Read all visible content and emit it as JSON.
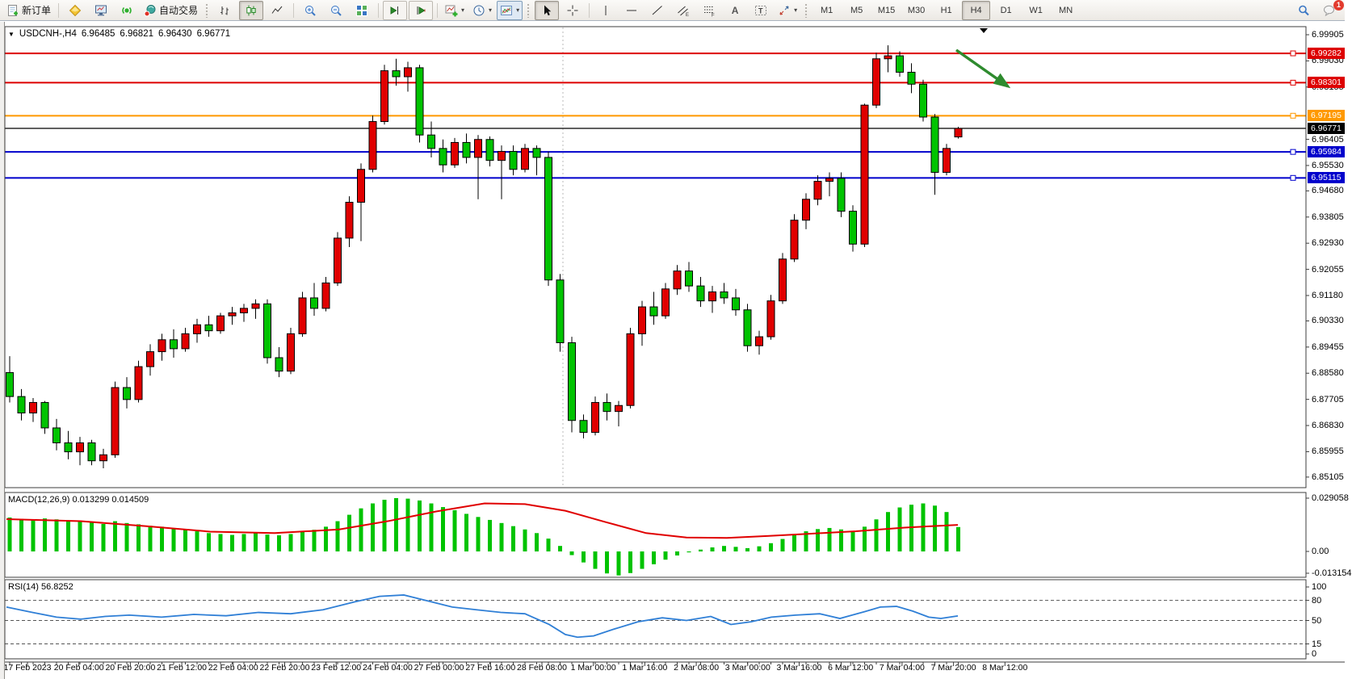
{
  "toolbar": {
    "new_order": "新订单",
    "auto_trading": "自动交易",
    "timeframes": [
      "M1",
      "M5",
      "M15",
      "M30",
      "H1",
      "H4",
      "D1",
      "W1",
      "MN"
    ],
    "active_timeframe": "H4",
    "notification_count": "1",
    "glyphs": {
      "dropdown": "▾",
      "title_arrow": "▼",
      "letter_a": "A",
      "letter_t": "T",
      "channel_tag": "E",
      "fibo_tag": "F"
    }
  },
  "chart": {
    "title": {
      "symbol": "USDCNH-,H4",
      "open": "6.96485",
      "high": "6.96821",
      "low": "6.96430",
      "close": "6.96771"
    },
    "colors": {
      "up": "#e00000",
      "down": "#00c300",
      "outline": "#000000",
      "hline_red": "#dd0000",
      "hline_orange": "#ff9900",
      "hline_blue": "#0000cc",
      "price_line": "#000000",
      "annotation_arrow": "#2e8b2e",
      "macd_hist": "#00c300",
      "macd_signal": "#e00000",
      "rsi_line": "#2f7fd6"
    },
    "price_axis_ticks": [
      "6.99905",
      "6.99030",
      "6.98155",
      "6.96405",
      "6.95530",
      "6.94680",
      "6.93805",
      "6.92930",
      "6.92055",
      "6.91180",
      "6.90330",
      "6.89455",
      "6.88580",
      "6.87705",
      "6.86830",
      "6.85955",
      "6.85105"
    ],
    "hlines": [
      {
        "price": 6.99282,
        "label": "6.99282",
        "color_key": "hline_red"
      },
      {
        "price": 6.98301,
        "label": "6.98301",
        "color_key": "hline_red"
      },
      {
        "price": 6.97195,
        "label": "6.97195",
        "color_key": "hline_orange"
      },
      {
        "price": 6.95984,
        "label": "6.95984",
        "color_key": "hline_blue"
      },
      {
        "price": 6.95115,
        "label": "6.95115",
        "color_key": "hline_blue"
      }
    ],
    "current_price": {
      "price": 6.96771,
      "label": "6.96771"
    },
    "time_labels": [
      "17 Feb 2023",
      "20 Feb 04:00",
      "20 Feb 20:00",
      "21 Feb 12:00",
      "22 Feb 04:00",
      "22 Feb 20:00",
      "23 Feb 12:00",
      "24 Feb 04:00",
      "27 Feb 00:00",
      "27 Feb 16:00",
      "28 Feb 08:00",
      "1 Mar 00:00",
      "1 Mar 16:00",
      "2 Mar 08:00",
      "3 Mar 00:00",
      "3 Mar 16:00",
      "6 Mar 12:00",
      "7 Mar 04:00",
      "7 Mar 20:00",
      "8 Mar 12:00"
    ],
    "candles": [
      [
        6.886,
        6.8915,
        6.876,
        6.878
      ],
      [
        6.878,
        6.8805,
        6.87,
        6.8725
      ],
      [
        6.8725,
        6.8775,
        6.8695,
        6.876
      ],
      [
        6.876,
        6.8765,
        6.8655,
        6.8675
      ],
      [
        6.8675,
        6.8705,
        6.86,
        6.8625
      ],
      [
        6.8625,
        6.8665,
        6.857,
        6.8595
      ],
      [
        6.8595,
        6.8645,
        6.855,
        6.8625
      ],
      [
        6.8625,
        6.8635,
        6.855,
        6.8565
      ],
      [
        6.8565,
        6.8605,
        6.854,
        6.8585
      ],
      [
        6.8585,
        6.883,
        6.8575,
        6.881
      ],
      [
        6.881,
        6.8845,
        6.874,
        6.877
      ],
      [
        6.877,
        6.89,
        6.876,
        6.888
      ],
      [
        6.888,
        6.8955,
        6.885,
        6.893
      ],
      [
        6.893,
        6.899,
        6.89,
        6.897
      ],
      [
        6.897,
        6.9005,
        6.891,
        6.894
      ],
      [
        6.894,
        6.901,
        6.893,
        6.899
      ],
      [
        6.899,
        6.904,
        6.896,
        6.902
      ],
      [
        6.902,
        6.905,
        6.898,
        6.9
      ],
      [
        6.9,
        6.906,
        6.899,
        6.905
      ],
      [
        6.905,
        6.908,
        6.902,
        6.906
      ],
      [
        6.906,
        6.909,
        6.903,
        6.9075
      ],
      [
        6.9075,
        6.9105,
        6.904,
        6.909
      ],
      [
        6.909,
        6.9105,
        6.889,
        6.891
      ],
      [
        6.891,
        6.8945,
        6.8845,
        6.8865
      ],
      [
        6.8865,
        6.901,
        6.8855,
        6.899
      ],
      [
        6.899,
        6.913,
        6.898,
        6.911
      ],
      [
        6.911,
        6.916,
        6.905,
        6.9075
      ],
      [
        6.9075,
        6.918,
        6.9065,
        6.916
      ],
      [
        6.916,
        6.933,
        6.915,
        6.931
      ],
      [
        6.931,
        6.945,
        6.928,
        6.943
      ],
      [
        6.943,
        6.956,
        6.93,
        6.954
      ],
      [
        6.954,
        6.972,
        6.953,
        6.97
      ],
      [
        6.97,
        6.989,
        6.969,
        6.987
      ],
      [
        6.987,
        6.991,
        6.982,
        6.985
      ],
      [
        6.985,
        6.99,
        6.98,
        6.988
      ],
      [
        6.988,
        6.989,
        6.963,
        6.9655
      ],
      [
        6.9655,
        6.97,
        6.958,
        6.961
      ],
      [
        6.961,
        6.964,
        6.953,
        6.9555
      ],
      [
        6.9555,
        6.9645,
        6.9545,
        6.963
      ],
      [
        6.963,
        6.966,
        6.956,
        6.958
      ],
      [
        6.958,
        6.9655,
        6.944,
        6.964
      ],
      [
        6.964,
        6.965,
        6.955,
        6.957
      ],
      [
        6.957,
        6.962,
        6.944,
        6.96
      ],
      [
        6.96,
        6.962,
        6.952,
        6.954
      ],
      [
        6.954,
        6.9625,
        6.953,
        6.961
      ],
      [
        6.961,
        6.962,
        6.952,
        6.958
      ],
      [
        6.958,
        6.96,
        6.915,
        6.917
      ],
      [
        6.917,
        6.919,
        6.893,
        6.896
      ],
      [
        6.896,
        6.898,
        6.866,
        6.87
      ],
      [
        6.87,
        6.872,
        6.864,
        6.866
      ],
      [
        6.866,
        6.878,
        6.865,
        6.876
      ],
      [
        6.876,
        6.879,
        6.87,
        6.873
      ],
      [
        6.873,
        6.8765,
        6.868,
        6.875
      ],
      [
        6.875,
        6.901,
        6.874,
        6.899
      ],
      [
        6.899,
        6.91,
        6.895,
        6.908
      ],
      [
        6.908,
        6.913,
        6.902,
        6.905
      ],
      [
        6.905,
        6.916,
        6.904,
        6.914
      ],
      [
        6.914,
        6.922,
        6.912,
        6.92
      ],
      [
        6.92,
        6.923,
        6.913,
        6.915
      ],
      [
        6.915,
        6.918,
        6.908,
        6.91
      ],
      [
        6.91,
        6.915,
        6.906,
        6.913
      ],
      [
        6.913,
        6.916,
        6.909,
        6.911
      ],
      [
        6.911,
        6.914,
        6.905,
        6.907
      ],
      [
        6.907,
        6.909,
        6.893,
        6.895
      ],
      [
        6.895,
        6.9,
        6.892,
        6.898
      ],
      [
        6.898,
        6.912,
        6.897,
        6.91
      ],
      [
        6.91,
        6.926,
        6.909,
        6.924
      ],
      [
        6.924,
        6.939,
        6.923,
        6.937
      ],
      [
        6.937,
        6.946,
        6.934,
        6.944
      ],
      [
        6.944,
        6.952,
        6.942,
        6.95
      ],
      [
        6.95,
        6.953,
        6.945,
        6.951
      ],
      [
        6.951,
        6.953,
        6.938,
        6.94
      ],
      [
        6.94,
        6.942,
        6.9265,
        6.929
      ],
      [
        6.929,
        6.976,
        6.928,
        6.9755
      ],
      [
        6.9755,
        6.993,
        6.9745,
        6.991
      ],
      [
        6.991,
        6.9955,
        6.9865,
        6.992
      ],
      [
        6.992,
        6.9935,
        6.985,
        6.9865
      ],
      [
        6.9865,
        6.9895,
        6.9795,
        6.9825
      ],
      [
        6.9825,
        6.984,
        6.97,
        6.9715
      ],
      [
        6.9715,
        6.9725,
        6.9455,
        6.953
      ],
      [
        6.953,
        6.9625,
        6.952,
        6.961
      ],
      [
        6.96485,
        6.96821,
        6.9643,
        6.96771
      ]
    ]
  },
  "macd": {
    "label": "MACD(12,26,9) 0.013299 0.014509",
    "scale_top": "0.029058",
    "scale_zero": "0.00",
    "scale_bottom": "-0.013154",
    "histogram": [
      0.0185,
      0.0178,
      0.0172,
      0.018,
      0.0175,
      0.0168,
      0.0162,
      0.0158,
      0.015,
      0.0165,
      0.0155,
      0.0148,
      0.014,
      0.0135,
      0.0125,
      0.0118,
      0.011,
      0.01,
      0.0095,
      0.009,
      0.0095,
      0.01,
      0.0092,
      0.0088,
      0.0095,
      0.011,
      0.0118,
      0.0135,
      0.0165,
      0.02,
      0.0235,
      0.0262,
      0.0282,
      0.0291,
      0.0288,
      0.0278,
      0.0262,
      0.0242,
      0.0225,
      0.0205,
      0.0188,
      0.0172,
      0.0155,
      0.0138,
      0.012,
      0.01,
      0.007,
      0.003,
      -0.002,
      -0.006,
      -0.0095,
      -0.012,
      -0.0131,
      -0.0118,
      -0.0095,
      -0.007,
      -0.0045,
      -0.0022,
      -0.0005,
      0.001,
      0.0022,
      0.003,
      0.0025,
      0.0018,
      0.0028,
      0.0045,
      0.0068,
      0.0092,
      0.011,
      0.0122,
      0.0128,
      0.012,
      0.0108,
      0.0135,
      0.0175,
      0.0215,
      0.024,
      0.0255,
      0.0262,
      0.025,
      0.0215,
      0.0133
    ],
    "signal_points": [
      [
        8,
        0.0176
      ],
      [
        100,
        0.0165
      ],
      [
        180,
        0.0138
      ],
      [
        260,
        0.0108
      ],
      [
        340,
        0.01
      ],
      [
        420,
        0.012
      ],
      [
        480,
        0.0165
      ],
      [
        540,
        0.0218
      ],
      [
        600,
        0.0262
      ],
      [
        650,
        0.0258
      ],
      [
        700,
        0.0222
      ],
      [
        750,
        0.016
      ],
      [
        800,
        0.01
      ],
      [
        850,
        0.0076
      ],
      [
        900,
        0.0074
      ],
      [
        950,
        0.0084
      ],
      [
        1000,
        0.0096
      ],
      [
        1060,
        0.011
      ],
      [
        1120,
        0.013
      ],
      [
        1186,
        0.0145
      ]
    ]
  },
  "rsi": {
    "label": "RSI(14) 56.8252",
    "scale_labels": [
      "100",
      "80",
      "50",
      "15",
      "0"
    ],
    "levels": [
      80,
      50,
      15
    ],
    "points": [
      [
        8,
        70
      ],
      [
        40,
        62
      ],
      [
        70,
        55
      ],
      [
        100,
        52
      ],
      [
        130,
        56
      ],
      [
        160,
        58
      ],
      [
        200,
        55
      ],
      [
        240,
        59
      ],
      [
        280,
        57
      ],
      [
        320,
        62
      ],
      [
        360,
        60
      ],
      [
        400,
        66
      ],
      [
        440,
        78
      ],
      [
        470,
        86
      ],
      [
        500,
        88
      ],
      [
        530,
        79
      ],
      [
        560,
        70
      ],
      [
        590,
        66
      ],
      [
        620,
        62
      ],
      [
        650,
        60
      ],
      [
        680,
        44
      ],
      [
        700,
        29
      ],
      [
        715,
        25
      ],
      [
        735,
        27
      ],
      [
        760,
        37
      ],
      [
        790,
        48
      ],
      [
        820,
        54
      ],
      [
        850,
        50
      ],
      [
        880,
        56
      ],
      [
        905,
        44
      ],
      [
        930,
        48
      ],
      [
        955,
        55
      ],
      [
        985,
        58
      ],
      [
        1015,
        60
      ],
      [
        1040,
        53
      ],
      [
        1070,
        63
      ],
      [
        1090,
        70
      ],
      [
        1110,
        71
      ],
      [
        1130,
        64
      ],
      [
        1150,
        55
      ],
      [
        1165,
        53
      ],
      [
        1186,
        56.8
      ]
    ]
  }
}
